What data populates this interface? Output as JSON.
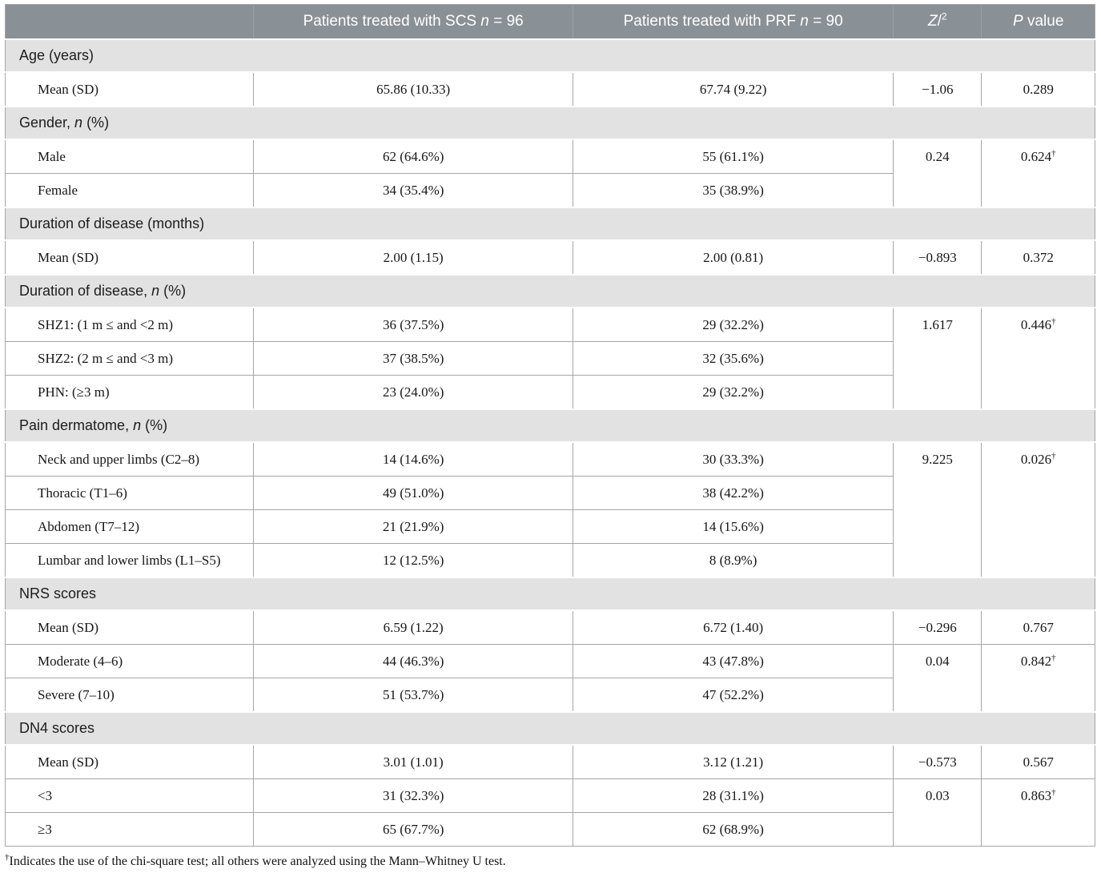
{
  "colors": {
    "header_bg": "#8a9196",
    "section_bg": "#e2e2e2",
    "border": "#a6a6a6",
    "header_text": "#ffffff"
  },
  "header": {
    "columns": [
      {
        "name": "row-label-column-header",
        "parts": []
      },
      {
        "name": "scs-column-header",
        "parts": [
          {
            "t": "Patients treated with SCS "
          },
          {
            "t": "n",
            "style": "i"
          },
          {
            "t": " = 96"
          }
        ]
      },
      {
        "name": "prf-column-header",
        "parts": [
          {
            "t": "Patients treated with PRF "
          },
          {
            "t": "n",
            "style": "i"
          },
          {
            "t": " = 90"
          }
        ]
      },
      {
        "name": "z-column-header",
        "parts": [
          {
            "t": "Z",
            "style": "i"
          },
          {
            "t": "/"
          },
          {
            "t": "2",
            "style": "sup"
          }
        ]
      },
      {
        "name": "p-column-header",
        "parts": [
          {
            "t": "P",
            "style": "i"
          },
          {
            "t": " value"
          }
        ]
      }
    ]
  },
  "sections": [
    {
      "label_parts": [
        {
          "t": "Age (years)"
        }
      ],
      "rows": [
        {
          "label": "Mean (SD)",
          "scs": "65.86 (10.33)",
          "prf": "67.74 (9.22)",
          "stat": {
            "z": "−1.06",
            "p": "0.289",
            "dagger": false,
            "rowspan": 1
          }
        }
      ]
    },
    {
      "label_parts": [
        {
          "t": "Gender, "
        },
        {
          "t": "n",
          "style": "i"
        },
        {
          "t": " (%)"
        }
      ],
      "rows": [
        {
          "label": "Male",
          "scs": "62 (64.6%)",
          "prf": "55 (61.1%)",
          "stat": {
            "z": "0.24",
            "p": "0.624",
            "dagger": true,
            "rowspan": 2
          }
        },
        {
          "label": "Female",
          "scs": "34 (35.4%)",
          "prf": "35 (38.9%)"
        }
      ]
    },
    {
      "label_parts": [
        {
          "t": "Duration of disease (months)"
        }
      ],
      "rows": [
        {
          "label": "Mean (SD)",
          "scs": "2.00 (1.15)",
          "prf": "2.00 (0.81)",
          "stat": {
            "z": "−0.893",
            "p": "0.372",
            "dagger": false,
            "rowspan": 1
          }
        }
      ]
    },
    {
      "label_parts": [
        {
          "t": "Duration of disease, "
        },
        {
          "t": "n",
          "style": "i"
        },
        {
          "t": " (%)"
        }
      ],
      "rows": [
        {
          "label": "SHZ1: (1 m ≤ and <2 m)",
          "scs": "36 (37.5%)",
          "prf": "29 (32.2%)",
          "stat": {
            "z": "1.617",
            "p": "0.446",
            "dagger": true,
            "rowspan": 3
          }
        },
        {
          "label": "SHZ2: (2 m ≤ and <3 m)",
          "scs": "37 (38.5%)",
          "prf": "32 (35.6%)"
        },
        {
          "label": "PHN: (≥3 m)",
          "scs": "23 (24.0%)",
          "prf": "29 (32.2%)"
        }
      ]
    },
    {
      "label_parts": [
        {
          "t": "Pain dermatome, "
        },
        {
          "t": "n",
          "style": "i"
        },
        {
          "t": " (%)"
        }
      ],
      "rows": [
        {
          "label": "Neck and upper limbs (C2–8)",
          "scs": "14 (14.6%)",
          "prf": "30 (33.3%)",
          "stat": {
            "z": "9.225",
            "p": "0.026",
            "dagger": true,
            "rowspan": 4
          }
        },
        {
          "label": "Thoracic (T1–6)",
          "scs": "49 (51.0%)",
          "prf": "38 (42.2%)"
        },
        {
          "label": "Abdomen (T7–12)",
          "scs": "21 (21.9%)",
          "prf": "14 (15.6%)"
        },
        {
          "label": "Lumbar and lower limbs (L1–S5)",
          "scs": "12 (12.5%)",
          "prf": "8 (8.9%)"
        }
      ]
    },
    {
      "label_parts": [
        {
          "t": "NRS scores"
        }
      ],
      "rows": [
        {
          "label": "Mean (SD)",
          "scs": "6.59 (1.22)",
          "prf": "6.72 (1.40)",
          "stat": {
            "z": "−0.296",
            "p": "0.767",
            "dagger": false,
            "rowspan": 1
          }
        },
        {
          "label": "Moderate (4–6)",
          "scs": "44 (46.3%)",
          "prf": "43 (47.8%)",
          "stat": {
            "z": "0.04",
            "p": "0.842",
            "dagger": true,
            "rowspan": 2
          }
        },
        {
          "label": "Severe (7–10)",
          "scs": "51 (53.7%)",
          "prf": "47 (52.2%)"
        }
      ]
    },
    {
      "label_parts": [
        {
          "t": "DN4 scores"
        }
      ],
      "rows": [
        {
          "label": "Mean (SD)",
          "scs": "3.01 (1.01)",
          "prf": "3.12 (1.21)",
          "stat": {
            "z": "−0.573",
            "p": "0.567",
            "dagger": false,
            "rowspan": 1
          }
        },
        {
          "label": "<3",
          "scs": "31 (32.3%)",
          "prf": "28 (31.1%)",
          "stat": {
            "z": "0.03",
            "p": "0.863",
            "dagger": true,
            "rowspan": 2
          }
        },
        {
          "label": "≥3",
          "scs": "65 (67.7%)",
          "prf": "62 (68.9%)"
        }
      ]
    }
  ],
  "footnote": {
    "dagger": "†",
    "text": "Indicates the use of the chi-square test; all others were analyzed using the Mann–Whitney U test."
  }
}
